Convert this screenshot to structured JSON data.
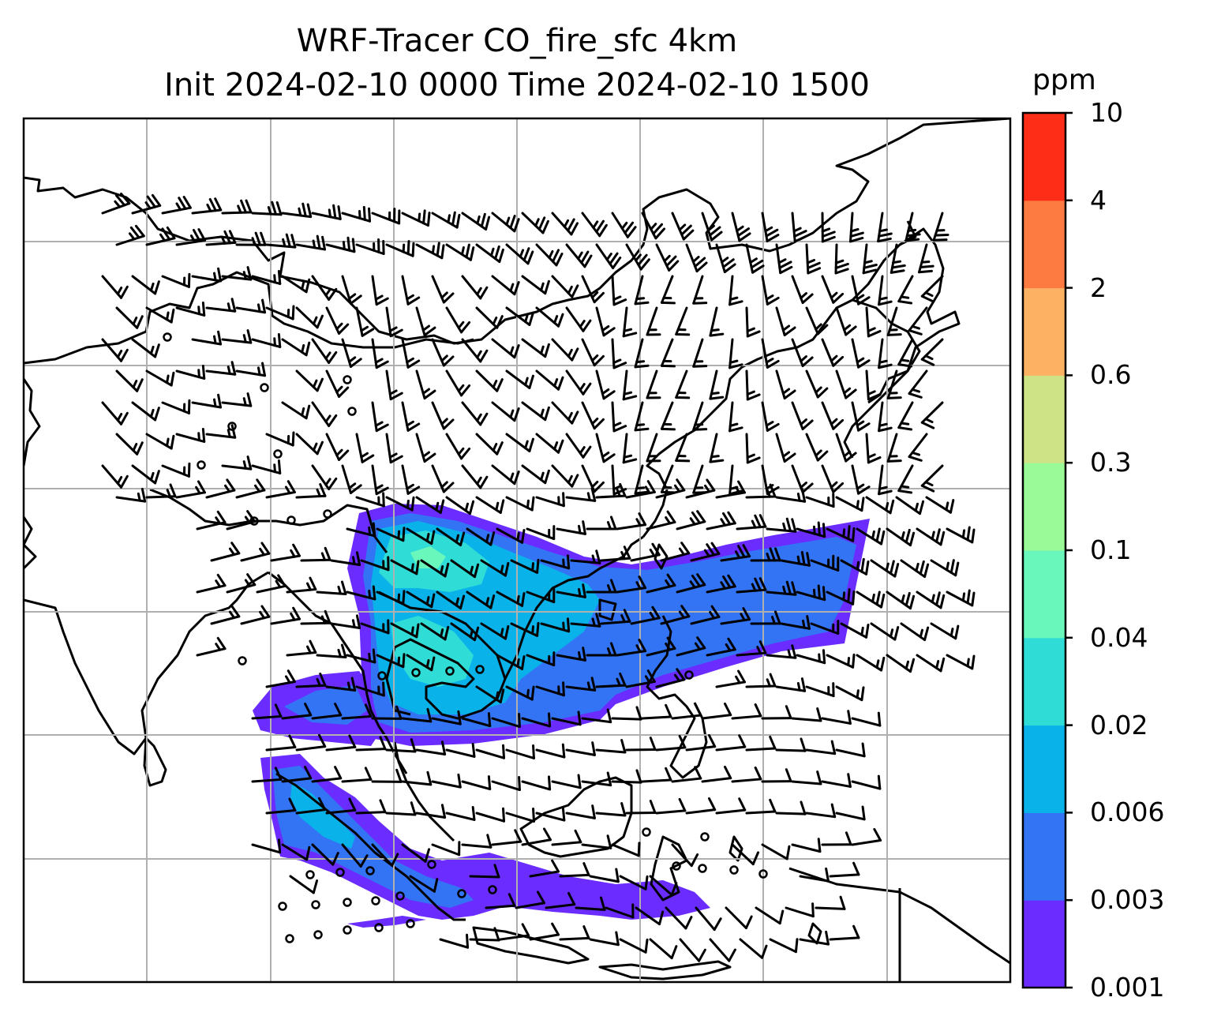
{
  "title": {
    "line1": "WRF-Tracer CO_fire_sfc 4km",
    "line2": "Init 2024-02-10 0000 Time 2024-02-10 1500"
  },
  "colorbar": {
    "unit": "ppm",
    "ticks": [
      "0.001",
      "0.003",
      "0.006",
      "0.02",
      "0.04",
      "0.1",
      "0.3",
      "0.6",
      "2",
      "4",
      "10"
    ],
    "colors": [
      "#6a2cff",
      "#3374f5",
      "#0ab2ea",
      "#30ddd6",
      "#6af7bc",
      "#9bfa98",
      "#cde386",
      "#fdb263",
      "#fd7a40",
      "#fd2d18"
    ]
  },
  "map": {
    "type": "filled-contour with wind barbs",
    "plume_colors": {
      "outer": "#6a2cff",
      "mid": "#3374f5",
      "inner": "#0ab2ea",
      "core": "#30ddd6"
    },
    "coastline_color": "#000000",
    "gridline_color": "#b0b0b0"
  }
}
